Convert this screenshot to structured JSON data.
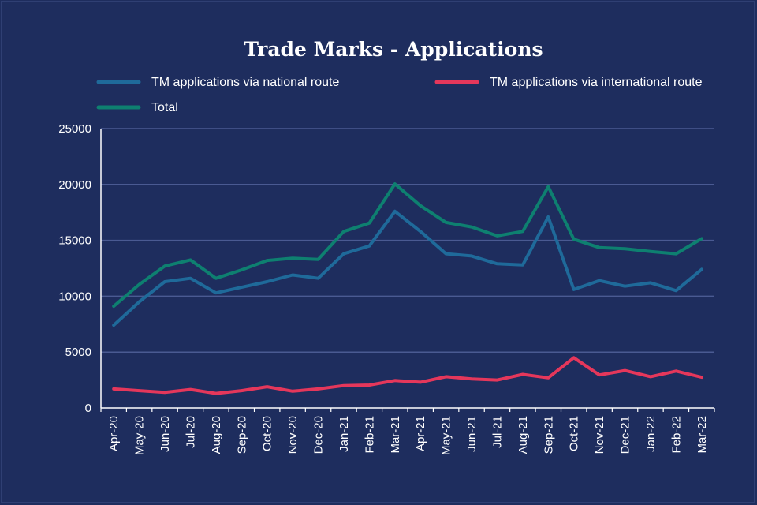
{
  "chart_data": {
    "type": "line",
    "title": "Trade Marks - Applications",
    "xlabel": "",
    "ylabel": "",
    "ylim": [
      0,
      25000
    ],
    "yticks": [
      0,
      5000,
      10000,
      15000,
      20000,
      25000
    ],
    "grid": true,
    "legend_position": "top",
    "categories": [
      "Apr-20",
      "May-20",
      "Jun-20",
      "Jul-20",
      "Aug-20",
      "Sep-20",
      "Oct-20",
      "Nov-20",
      "Dec-20",
      "Jan-21",
      "Feb-21",
      "Mar-21",
      "Apr-21",
      "May-21",
      "Jun-21",
      "Jul-21",
      "Aug-21",
      "Sep-21",
      "Oct-21",
      "Nov-21",
      "Dec-21",
      "Jan-22",
      "Feb-22",
      "Mar-22"
    ],
    "series": [
      {
        "name": "TM applications via national route",
        "color": "#1f6a9a",
        "values": [
          7400,
          9500,
          11300,
          11600,
          10300,
          10800,
          11300,
          11900,
          11600,
          13800,
          14500,
          17600,
          15800,
          13800,
          13600,
          12900,
          12800,
          17100,
          10600,
          11400,
          10900,
          11200,
          10500,
          12400
        ]
      },
      {
        "name": "TM applications via international route",
        "color": "#e5375b",
        "values": [
          1700,
          1550,
          1400,
          1650,
          1300,
          1550,
          1900,
          1500,
          1700,
          2000,
          2050,
          2450,
          2300,
          2800,
          2600,
          2500,
          3000,
          2700,
          4500,
          2950,
          3350,
          2800,
          3300,
          2750
        ]
      },
      {
        "name": "Total",
        "color": "#0e8070",
        "values": [
          9100,
          11050,
          12700,
          13250,
          11600,
          12350,
          13200,
          13400,
          13300,
          15800,
          16550,
          20050,
          18100,
          16600,
          16200,
          15400,
          15800,
          19800,
          15100,
          14350,
          14250,
          14000,
          13800,
          15150
        ]
      }
    ]
  },
  "colors": {
    "background": "#1e2d5e",
    "grid": "#4a5a92",
    "axis": "#ffffff",
    "text": "#ffffff"
  }
}
